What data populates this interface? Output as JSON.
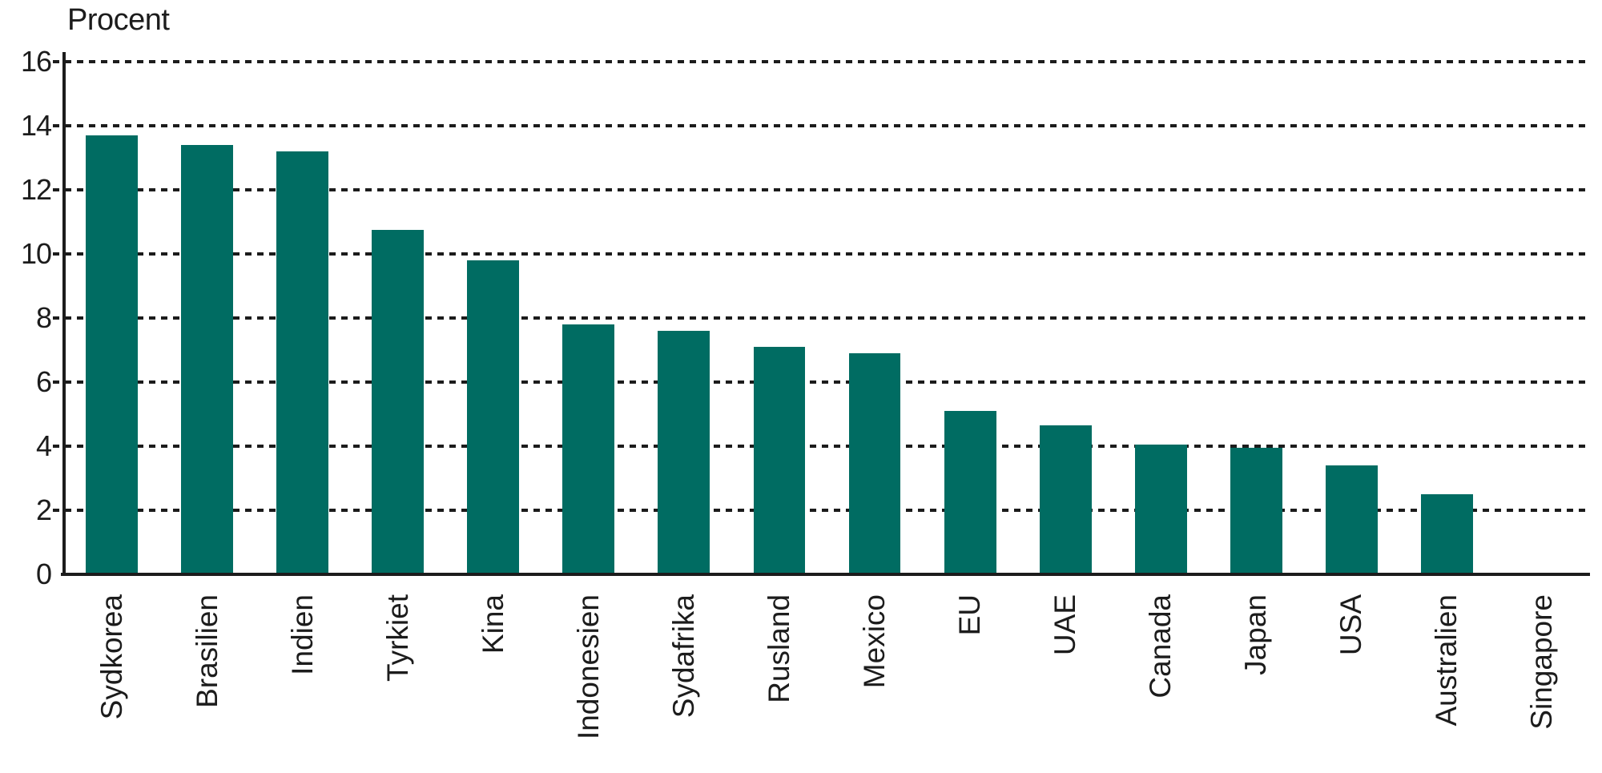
{
  "chart_data": {
    "type": "bar",
    "title": "Procent",
    "ylabel": "Procent",
    "xlabel": "",
    "categories": [
      "Sydkorea",
      "Brasilien",
      "Indien",
      "Tyrkiet",
      "Kina",
      "Indonesien",
      "Sydafrika",
      "Rusland",
      "Mexico",
      "EU",
      "UAE",
      "Canada",
      "Japan",
      "USA",
      "Australien",
      "Singapore"
    ],
    "values": [
      13.7,
      13.4,
      13.2,
      10.75,
      9.8,
      7.8,
      7.6,
      7.1,
      6.9,
      5.1,
      4.65,
      4.05,
      3.95,
      3.4,
      2.5,
      0
    ],
    "ylim": [
      0,
      16
    ],
    "ytick_step": 2,
    "yticks": [
      0,
      2,
      4,
      6,
      8,
      10,
      12,
      14,
      16
    ],
    "grid": "horizontal-dashed",
    "legend_position": "none",
    "bar_color": "#006C62",
    "axis_color": "#1c1c1c",
    "background_color": "#ffffff"
  }
}
